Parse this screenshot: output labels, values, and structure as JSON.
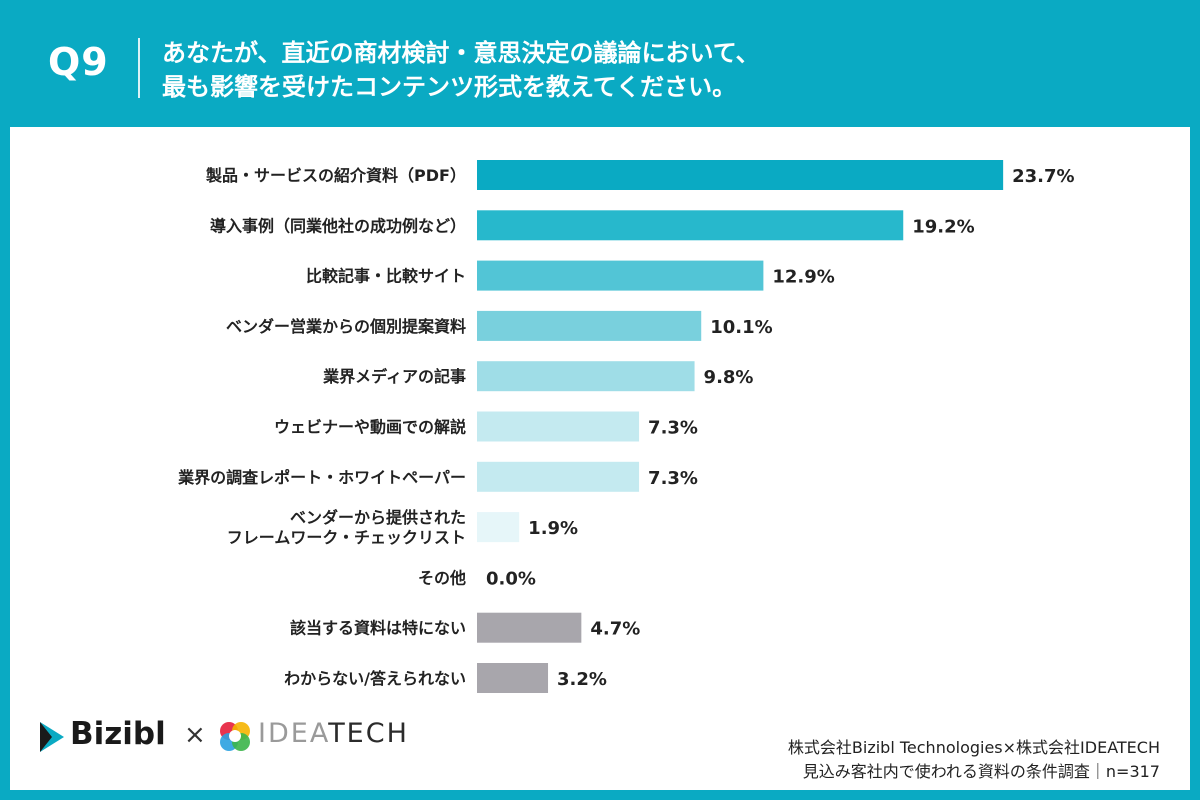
{
  "header": {
    "question_number": "Q9",
    "question_line1": "あなたが、直近の商材検討・意思決定の議論において、",
    "question_line2": "最も影響を受けたコンテンツ形式を教えてください。"
  },
  "colors": {
    "frame": "#0aaac3",
    "bars": [
      "#0aaac3",
      "#27b8cc",
      "#52c5d6",
      "#79d0dd",
      "#9fdde7",
      "#c4eaf0",
      "#c4eaf0",
      "#e6f6f9",
      "#e6f6f9",
      "#a8a6ac",
      "#a8a6ac"
    ]
  },
  "chart_data": {
    "type": "bar",
    "orientation": "horizontal",
    "categories": [
      "製品・サービスの紹介資料（PDF）",
      "導入事例（同業他社の成功例など）",
      "比較記事・比較サイト",
      "ベンダー営業からの個別提案資料",
      "業界メディアの記事",
      "ウェビナーや動画での解説",
      "業界の調査レポート・ホワイトペーパー",
      "ベンダーから提供された\nフレームワーク・チェックリスト",
      "その他",
      "該当する資料は特にない",
      "わからない/答えられない"
    ],
    "values": [
      23.7,
      19.2,
      12.9,
      10.1,
      9.8,
      7.3,
      7.3,
      1.9,
      0.0,
      4.7,
      3.2
    ],
    "value_labels": [
      "23.7%",
      "19.2%",
      "12.9%",
      "10.1%",
      "9.8%",
      "7.3%",
      "7.3%",
      "1.9%",
      "0.0%",
      "4.7%",
      "3.2%"
    ],
    "xlim": [
      0,
      25
    ]
  },
  "footer": {
    "logo1": "Bizibl",
    "times_sign": "×",
    "logo2_light": "IDEA",
    "logo2_dark": "TECH",
    "credit_line1": "株式会社Bizibl Technologies×株式会社IDEATECH",
    "credit_line2": "見込み客社内で使われる資料の条件調査｜n=317"
  }
}
